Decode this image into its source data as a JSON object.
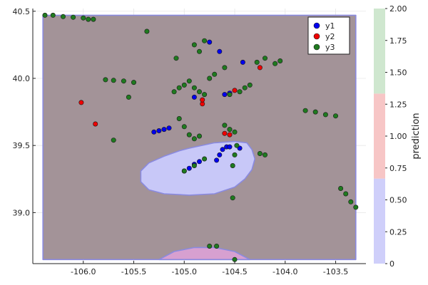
{
  "chart_data": {
    "type": "scatter",
    "title": "",
    "xlabel": "",
    "ylabel": "",
    "xlim": [
      -106.5,
      -103.2
    ],
    "ylim": [
      38.62,
      40.52
    ],
    "xticks": [
      -106.0,
      -105.5,
      -105.0,
      -104.5,
      -104.0,
      -103.5
    ],
    "xtick_labels": [
      "-106.0",
      "-105.5",
      "-105.0",
      "-104.5",
      "-104.0",
      "-103.5"
    ],
    "yticks": [
      39.0,
      39.5,
      40.0,
      40.5
    ],
    "ytick_labels": [
      "39.0",
      "39.5",
      "40.0",
      "40.5"
    ],
    "grid": true,
    "legend_position": "top-right",
    "legend": [
      {
        "name": "y1",
        "color": "#0000ee"
      },
      {
        "name": "y2",
        "color": "#ee0000"
      },
      {
        "name": "y3",
        "color": "#1f7a1f"
      }
    ],
    "regions": [
      {
        "prediction": 0,
        "color": "#c8c8f8",
        "polygon": [
          [
            -104.95,
            39.48
          ],
          [
            -104.7,
            39.52
          ],
          [
            -104.5,
            39.53
          ],
          [
            -104.38,
            39.52
          ],
          [
            -104.33,
            39.47
          ],
          [
            -104.3,
            39.4
          ],
          [
            -104.33,
            39.32
          ],
          [
            -104.4,
            39.25
          ],
          [
            -104.5,
            39.19
          ],
          [
            -104.7,
            39.14
          ],
          [
            -104.95,
            39.13
          ],
          [
            -105.2,
            39.14
          ],
          [
            -105.35,
            39.17
          ],
          [
            -105.43,
            39.23
          ],
          [
            -105.43,
            39.31
          ],
          [
            -105.35,
            39.37
          ],
          [
            -105.2,
            39.42
          ],
          [
            -105.05,
            39.46
          ]
        ]
      },
      {
        "prediction": 2,
        "color": "#a39398",
        "polygon": [
          [
            -106.4,
            40.47
          ],
          [
            -103.3,
            40.47
          ],
          [
            -103.3,
            38.65
          ],
          [
            -106.4,
            38.65
          ]
        ]
      },
      {
        "prediction": 1,
        "color": "#d7a0d0",
        "polygon": [
          [
            -105.25,
            38.65
          ],
          [
            -105.1,
            38.71
          ],
          [
            -104.9,
            38.74
          ],
          [
            -104.7,
            38.74
          ],
          [
            -104.5,
            38.71
          ],
          [
            -104.35,
            38.65
          ]
        ]
      }
    ],
    "series": [
      {
        "name": "y1",
        "color": "#0000ee",
        "points": [
          [
            -105.3,
            39.6
          ],
          [
            -105.25,
            39.61
          ],
          [
            -105.2,
            39.62
          ],
          [
            -105.15,
            39.63
          ],
          [
            -105.0,
            39.31
          ],
          [
            -104.95,
            39.33
          ],
          [
            -104.9,
            39.36
          ],
          [
            -104.85,
            39.38
          ],
          [
            -104.68,
            39.39
          ],
          [
            -104.65,
            39.43
          ],
          [
            -104.62,
            39.47
          ],
          [
            -104.58,
            39.49
          ],
          [
            -104.55,
            39.49
          ],
          [
            -104.45,
            39.48
          ],
          [
            -104.9,
            39.86
          ],
          [
            -104.65,
            40.2
          ],
          [
            -104.6,
            39.88
          ],
          [
            -104.55,
            39.89
          ],
          [
            -104.75,
            40.27
          ],
          [
            -104.42,
            40.12
          ]
        ]
      },
      {
        "name": "y2",
        "color": "#ee0000",
        "points": [
          [
            -106.02,
            39.82
          ],
          [
            -105.88,
            39.66
          ],
          [
            -104.82,
            39.81
          ],
          [
            -104.82,
            39.84
          ],
          [
            -104.6,
            39.59
          ],
          [
            -104.25,
            40.08
          ],
          [
            -104.5,
            39.91
          ],
          [
            -104.55,
            39.58
          ]
        ]
      },
      {
        "name": "y3",
        "color": "#1f7a1f",
        "points": [
          [
            -106.38,
            40.47
          ],
          [
            -106.3,
            40.47
          ],
          [
            -106.2,
            40.46
          ],
          [
            -106.1,
            40.455
          ],
          [
            -106.0,
            40.45
          ],
          [
            -105.95,
            40.44
          ],
          [
            -105.9,
            40.44
          ],
          [
            -105.78,
            39.99
          ],
          [
            -105.7,
            39.985
          ],
          [
            -105.6,
            39.98
          ],
          [
            -105.5,
            39.97
          ],
          [
            -105.55,
            39.86
          ],
          [
            -105.37,
            40.35
          ],
          [
            -105.08,
            40.15
          ],
          [
            -104.9,
            40.25
          ],
          [
            -104.85,
            40.2
          ],
          [
            -104.8,
            40.28
          ],
          [
            -104.75,
            40.0
          ],
          [
            -104.7,
            40.03
          ],
          [
            -104.6,
            40.08
          ],
          [
            -104.95,
            39.98
          ],
          [
            -105.0,
            39.95
          ],
          [
            -105.05,
            39.93
          ],
          [
            -104.9,
            39.93
          ],
          [
            -104.85,
            39.9
          ],
          [
            -104.8,
            39.88
          ],
          [
            -105.1,
            39.9
          ],
          [
            -104.55,
            39.88
          ],
          [
            -104.45,
            39.9
          ],
          [
            -104.4,
            39.93
          ],
          [
            -104.35,
            39.95
          ],
          [
            -104.28,
            40.12
          ],
          [
            -104.2,
            40.15
          ],
          [
            -104.1,
            40.11
          ],
          [
            -104.05,
            40.13
          ],
          [
            -103.8,
            39.76
          ],
          [
            -103.7,
            39.75
          ],
          [
            -103.6,
            39.73
          ],
          [
            -103.5,
            39.72
          ],
          [
            -105.05,
            39.7
          ],
          [
            -105.0,
            39.64
          ],
          [
            -104.95,
            39.58
          ],
          [
            -104.9,
            39.55
          ],
          [
            -104.6,
            39.65
          ],
          [
            -104.55,
            39.62
          ],
          [
            -104.5,
            39.6
          ],
          [
            -104.48,
            39.5
          ],
          [
            -104.5,
            39.43
          ],
          [
            -104.52,
            39.35
          ],
          [
            -104.52,
            39.11
          ],
          [
            -104.25,
            39.44
          ],
          [
            -104.2,
            39.43
          ],
          [
            -104.85,
            39.57
          ],
          [
            -104.9,
            39.35
          ],
          [
            -105.0,
            39.31
          ],
          [
            -104.8,
            39.4
          ],
          [
            -103.45,
            39.18
          ],
          [
            -103.4,
            39.14
          ],
          [
            -103.35,
            39.08
          ],
          [
            -103.3,
            39.04
          ],
          [
            -105.7,
            39.54
          ],
          [
            -104.75,
            38.75
          ],
          [
            -104.68,
            38.75
          ],
          [
            -104.5,
            38.65
          ]
        ]
      }
    ],
    "colorbar": {
      "label": "prediction",
      "min": 0,
      "max": 2,
      "ticks": [
        0,
        0.25,
        0.5,
        0.75,
        1.0,
        1.25,
        1.5,
        1.75,
        2.0
      ],
      "tick_labels": [
        "0",
        "0.25",
        "0.50",
        "0.75",
        "1.00",
        "1.25",
        "1.50",
        "1.75",
        "2.00"
      ],
      "bands": [
        {
          "from": 0,
          "to": 0.6667,
          "color": "#cfcffa"
        },
        {
          "from": 0.6667,
          "to": 1.3333,
          "color": "#f7c6c6"
        },
        {
          "from": 1.3333,
          "to": 2.0,
          "color": "#cfe7cf"
        }
      ]
    }
  }
}
